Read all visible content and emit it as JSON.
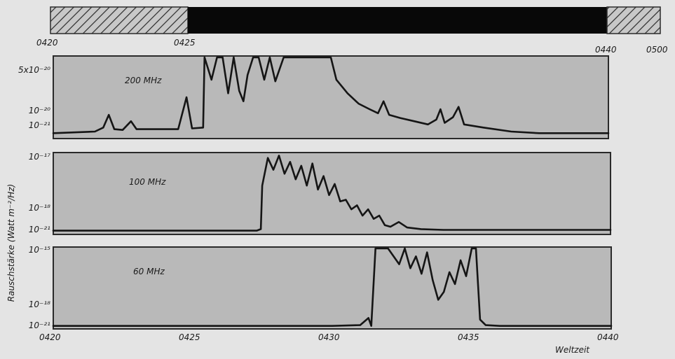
{
  "chart_data": {
    "type": "line",
    "ylabel": "Rauschstärke (Watt m⁻²/Hz)",
    "xlabel": "Weltzeit",
    "timeline": {
      "ticks": [
        "0420",
        "0425",
        "0440",
        "0500"
      ],
      "segments": [
        {
          "start": "0420",
          "end": "0425",
          "pattern": "hatched"
        },
        {
          "start": "0425",
          "end": "0440",
          "pattern": "black"
        },
        {
          "start": "0440",
          "end": "0500",
          "pattern": "hatched"
        }
      ]
    },
    "panels": [
      {
        "name": "200 MHz",
        "ytick_labels": [
          "5x10⁻²⁰",
          "10⁻²⁰",
          "10⁻²¹"
        ],
        "ytick_levels": [
          1.0,
          0.25,
          0.04
        ],
        "points": [
          [
            420.0,
            0.05
          ],
          [
            421.5,
            0.07
          ],
          [
            421.8,
            0.12
          ],
          [
            422.0,
            0.28
          ],
          [
            422.2,
            0.1
          ],
          [
            422.5,
            0.09
          ],
          [
            422.8,
            0.2
          ],
          [
            423.0,
            0.1
          ],
          [
            424.5,
            0.1
          ],
          [
            424.8,
            0.5
          ],
          [
            425.0,
            0.11
          ],
          [
            425.4,
            0.12
          ],
          [
            425.45,
            1.0
          ],
          [
            425.7,
            0.72
          ],
          [
            425.9,
            1.0
          ],
          [
            426.1,
            1.0
          ],
          [
            426.3,
            0.55
          ],
          [
            426.5,
            1.0
          ],
          [
            426.7,
            0.58
          ],
          [
            426.85,
            0.45
          ],
          [
            427.0,
            0.78
          ],
          [
            427.2,
            1.0
          ],
          [
            427.4,
            1.0
          ],
          [
            427.6,
            0.72
          ],
          [
            427.8,
            1.0
          ],
          [
            428.0,
            0.7
          ],
          [
            428.3,
            1.0
          ],
          [
            429.0,
            1.0
          ],
          [
            430.0,
            1.0
          ],
          [
            430.2,
            0.72
          ],
          [
            430.6,
            0.55
          ],
          [
            431.0,
            0.42
          ],
          [
            431.4,
            0.35
          ],
          [
            431.7,
            0.3
          ],
          [
            431.9,
            0.45
          ],
          [
            432.1,
            0.28
          ],
          [
            432.5,
            0.24
          ],
          [
            433.0,
            0.2
          ],
          [
            433.5,
            0.16
          ],
          [
            433.8,
            0.22
          ],
          [
            433.95,
            0.35
          ],
          [
            434.1,
            0.18
          ],
          [
            434.4,
            0.25
          ],
          [
            434.6,
            0.38
          ],
          [
            434.8,
            0.16
          ],
          [
            435.5,
            0.12
          ],
          [
            436.5,
            0.07
          ],
          [
            437.5,
            0.05
          ],
          [
            440.0,
            0.05
          ]
        ]
      },
      {
        "name": "100 MHz",
        "ytick_labels": [
          "10⁻¹⁷",
          "10⁻¹⁸",
          "10⁻²¹"
        ],
        "ytick_levels": [
          1.0,
          0.25,
          0.02
        ],
        "points": [
          [
            420.0,
            0.03
          ],
          [
            422.0,
            0.03
          ],
          [
            424.0,
            0.03
          ],
          [
            426.0,
            0.03
          ],
          [
            427.3,
            0.03
          ],
          [
            427.45,
            0.05
          ],
          [
            427.5,
            0.6
          ],
          [
            427.7,
            0.95
          ],
          [
            427.9,
            0.8
          ],
          [
            428.1,
            0.98
          ],
          [
            428.3,
            0.75
          ],
          [
            428.5,
            0.9
          ],
          [
            428.7,
            0.68
          ],
          [
            428.9,
            0.85
          ],
          [
            429.1,
            0.6
          ],
          [
            429.3,
            0.88
          ],
          [
            429.5,
            0.55
          ],
          [
            429.7,
            0.72
          ],
          [
            429.9,
            0.48
          ],
          [
            430.1,
            0.62
          ],
          [
            430.3,
            0.4
          ],
          [
            430.5,
            0.42
          ],
          [
            430.7,
            0.3
          ],
          [
            430.9,
            0.35
          ],
          [
            431.1,
            0.22
          ],
          [
            431.3,
            0.3
          ],
          [
            431.5,
            0.18
          ],
          [
            431.7,
            0.22
          ],
          [
            431.9,
            0.1
          ],
          [
            432.1,
            0.08
          ],
          [
            432.4,
            0.14
          ],
          [
            432.7,
            0.07
          ],
          [
            433.2,
            0.05
          ],
          [
            434.0,
            0.04
          ],
          [
            436.0,
            0.04
          ],
          [
            440.0,
            0.04
          ]
        ]
      },
      {
        "name": "60 MHz",
        "ytick_labels": [
          "10⁻¹⁵",
          "10⁻¹⁸",
          "10⁻²¹"
        ],
        "ytick_levels": [
          1.0,
          0.3,
          0.01
        ],
        "points": [
          [
            420.0,
            0.02
          ],
          [
            422.0,
            0.02
          ],
          [
            424.0,
            0.02
          ],
          [
            426.0,
            0.02
          ],
          [
            428.0,
            0.02
          ],
          [
            430.0,
            0.02
          ],
          [
            431.0,
            0.03
          ],
          [
            431.3,
            0.12
          ],
          [
            431.4,
            0.02
          ],
          [
            431.55,
            1.0
          ],
          [
            432.0,
            1.0
          ],
          [
            432.4,
            0.8
          ],
          [
            432.6,
            1.0
          ],
          [
            432.8,
            0.75
          ],
          [
            433.0,
            0.9
          ],
          [
            433.2,
            0.68
          ],
          [
            433.4,
            0.95
          ],
          [
            433.6,
            0.6
          ],
          [
            433.8,
            0.35
          ],
          [
            434.0,
            0.45
          ],
          [
            434.2,
            0.7
          ],
          [
            434.4,
            0.55
          ],
          [
            434.6,
            0.85
          ],
          [
            434.8,
            0.65
          ],
          [
            435.0,
            1.0
          ],
          [
            435.15,
            1.0
          ],
          [
            435.3,
            0.1
          ],
          [
            435.5,
            0.03
          ],
          [
            436.0,
            0.02
          ],
          [
            440.0,
            0.02
          ]
        ]
      }
    ],
    "xtick_labels": [
      "0420",
      "0425",
      "0430",
      "0435",
      "0440"
    ],
    "xtick_values": [
      420,
      425,
      430,
      435,
      440
    ]
  }
}
